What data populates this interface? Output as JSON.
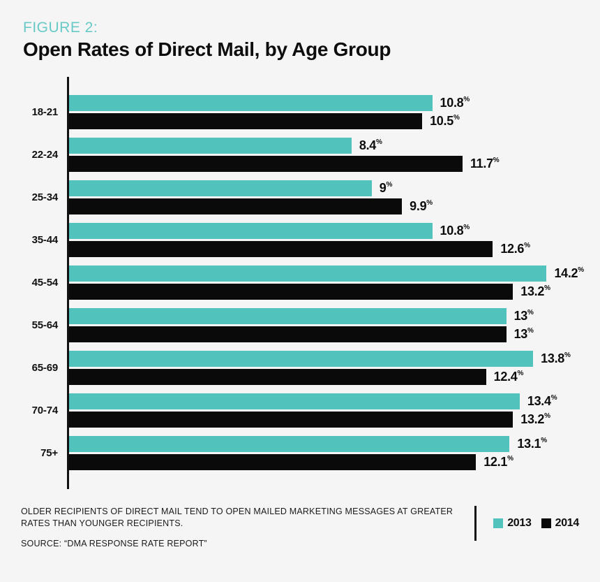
{
  "header": {
    "figure_label": "FIGURE 2:",
    "title": "Open Rates of Direct Mail, by Age Group"
  },
  "chart_data": {
    "type": "bar",
    "orientation": "horizontal",
    "title": "Open Rates of Direct Mail, by Age Group",
    "categories": [
      "18-21",
      "22-24",
      "25-34",
      "35-44",
      "45-54",
      "55-64",
      "65-69",
      "70-74",
      "75+"
    ],
    "series": [
      {
        "name": "2013",
        "color": "#52c2bc",
        "values": [
          10.8,
          8.4,
          9,
          10.8,
          14.2,
          13,
          13.8,
          13.4,
          13.1
        ]
      },
      {
        "name": "2014",
        "color": "#0a0a0a",
        "values": [
          10.5,
          11.7,
          9.9,
          12.6,
          13.2,
          13,
          12.4,
          13.2,
          12.1
        ]
      }
    ],
    "value_suffix": "%",
    "xlim": [
      0,
      14.2
    ],
    "grid": false,
    "legend_position": "bottom-right",
    "data_labels": true
  },
  "footer": {
    "caption": "OLDER RECIPIENTS OF DIRECT MAIL TEND TO OPEN MAILED MARKETING MESSAGES AT GREATER RATES THAN YOUNGER RECIPIENTS.",
    "source": "SOURCE: “DMA RESPONSE RATE REPORT”"
  },
  "colors": {
    "background": "#f5f5f6",
    "series_2013": "#52c2bc",
    "series_2014": "#0a0a0a",
    "figure_label": "#68cac6",
    "axis": "#111111"
  }
}
